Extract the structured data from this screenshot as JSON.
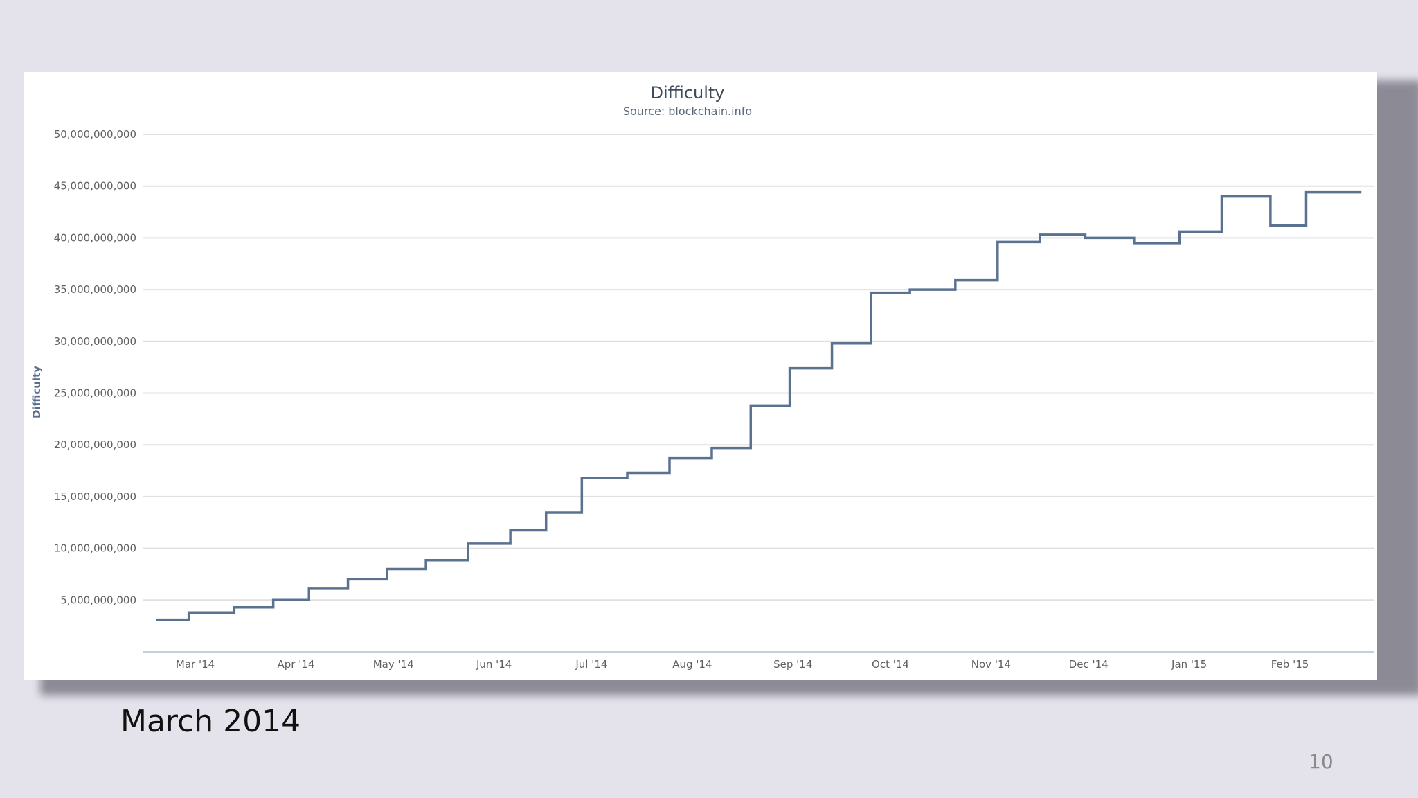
{
  "slide": {
    "caption": "March 2014",
    "page_number": "10"
  },
  "colors": {
    "background": "#e4e3ec",
    "line": "#5a7190",
    "grid": "#e0e0e0"
  },
  "chart_data": {
    "type": "line",
    "title": "Difficulty",
    "subtitle": "Source: blockchain.info",
    "xlabel": "",
    "ylabel": "Difficulty",
    "ylim": [
      0,
      50000000000
    ],
    "yticks": [
      5000000000,
      10000000000,
      15000000000,
      20000000000,
      25000000000,
      30000000000,
      35000000000,
      40000000000,
      45000000000,
      50000000000
    ],
    "ytick_labels": [
      "5,000,000,000",
      "10,000,000,000",
      "15,000,000,000",
      "20,000,000,000",
      "25,000,000,000",
      "30,000,000,000",
      "35,000,000,000",
      "40,000,000,000",
      "45,000,000,000",
      "50,000,000,000"
    ],
    "xlim": [
      "2014-02-13",
      "2015-02-27"
    ],
    "xticks": [
      "2014-03-01",
      "2014-04-01",
      "2014-05-01",
      "2014-06-01",
      "2014-07-01",
      "2014-08-01",
      "2014-09-01",
      "2014-10-01",
      "2014-11-01",
      "2014-12-01",
      "2015-01-01",
      "2015-02-01"
    ],
    "xtick_labels": [
      "Mar '14",
      "Apr '14",
      "May '14",
      "Jun '14",
      "Jul '14",
      "Aug '14",
      "Sep '14",
      "Oct '14",
      "Nov '14",
      "Dec '14",
      "Jan '15",
      "Feb '15"
    ],
    "grid": true,
    "legend": "none",
    "series": [
      {
        "step": true,
        "points": [
          [
            "2014-02-17",
            3100000000
          ],
          [
            "2014-02-27",
            3800000000
          ],
          [
            "2014-03-13",
            4300000000
          ],
          [
            "2014-03-25",
            5000000000
          ],
          [
            "2014-04-05",
            6100000000
          ],
          [
            "2014-04-17",
            7000000000
          ],
          [
            "2014-04-29",
            8000000000
          ],
          [
            "2014-05-11",
            8850000000
          ],
          [
            "2014-05-24",
            10450000000
          ],
          [
            "2014-06-06",
            11750000000
          ],
          [
            "2014-06-17",
            13450000000
          ],
          [
            "2014-06-28",
            16800000000
          ],
          [
            "2014-07-12",
            17300000000
          ],
          [
            "2014-07-25",
            18700000000
          ],
          [
            "2014-08-07",
            19700000000
          ],
          [
            "2014-08-19",
            23800000000
          ],
          [
            "2014-08-31",
            27400000000
          ],
          [
            "2014-09-13",
            29800000000
          ],
          [
            "2014-09-25",
            34700000000
          ],
          [
            "2014-10-07",
            35000000000
          ],
          [
            "2014-10-21",
            35900000000
          ],
          [
            "2014-11-03",
            39600000000
          ],
          [
            "2014-11-16",
            40300000000
          ],
          [
            "2014-11-30",
            40000000000
          ],
          [
            "2014-12-15",
            39500000000
          ],
          [
            "2014-12-29",
            40600000000
          ],
          [
            "2015-01-11",
            44000000000
          ],
          [
            "2015-01-26",
            41200000000
          ],
          [
            "2015-02-06",
            44400000000
          ],
          [
            "2015-02-23",
            44400000000
          ]
        ]
      }
    ]
  }
}
